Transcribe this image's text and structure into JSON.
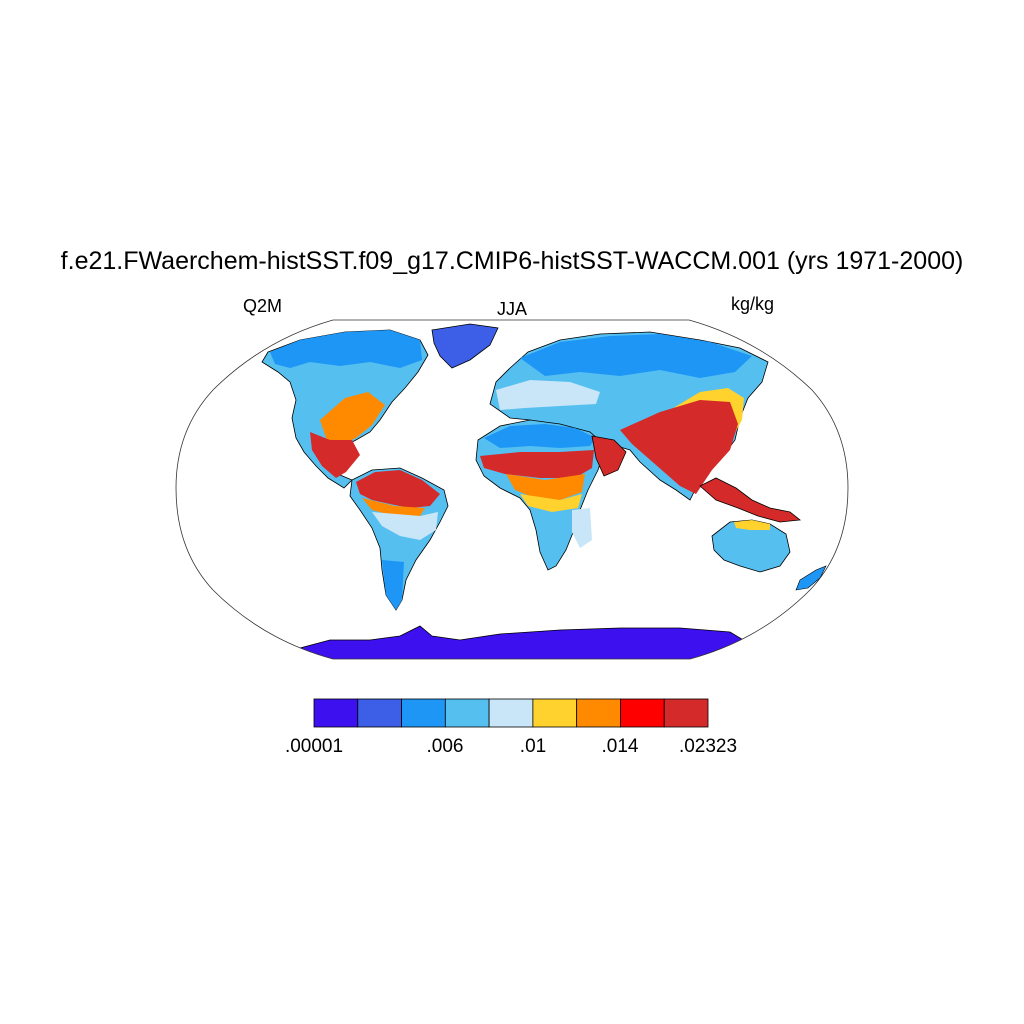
{
  "title": "f.e21.FWaerchem-histSST.f09_g17.CMIP6-histSST-WACCM.001 (yrs 1971-2000)",
  "left_label": "Q2M",
  "center_label": "JJA",
  "right_label": "kg/kg",
  "colorbar": {
    "colors": [
      "#3d10f0",
      "#3d5ee6",
      "#1e96f5",
      "#55bff0",
      "#c8e6f8",
      "#ffd22d",
      "#ff8a00",
      "#ff0000",
      "#d42a2a"
    ],
    "tick_labels": [
      ".00001",
      ".006",
      ".01",
      ".014",
      ".02323"
    ]
  },
  "map": {
    "projection": "Robinson",
    "ocean_color": "#ffffff",
    "coastline_color": "#000000"
  }
}
